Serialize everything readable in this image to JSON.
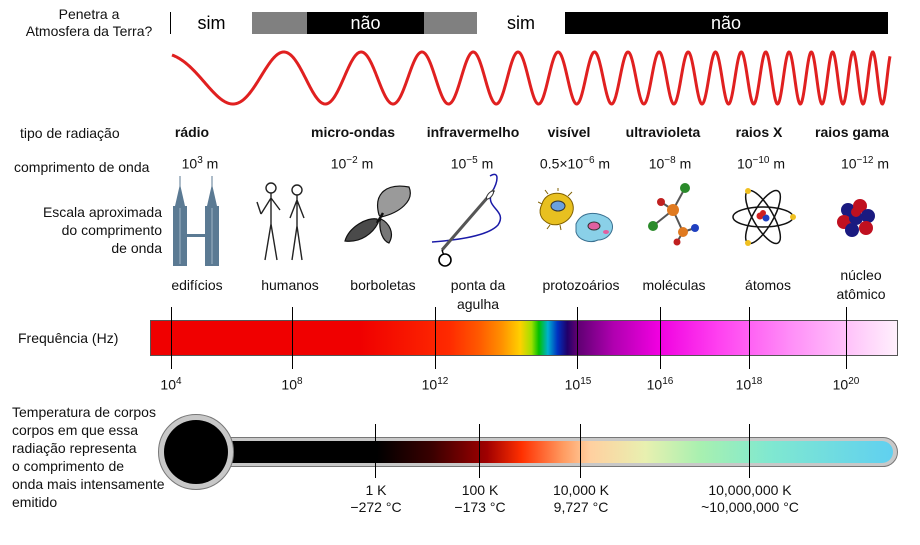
{
  "penetration": {
    "question": [
      "Penetra a",
      "Atmosfera da Terra?"
    ],
    "segments": [
      {
        "label": "sim",
        "fill": "#ffffff",
        "text_color": "#000000"
      },
      {
        "label": "",
        "fill": "#808080",
        "text_color": "#000000"
      },
      {
        "label": "não",
        "fill": "#000000",
        "text_color": "#ffffff"
      },
      {
        "label": "",
        "fill": "#808080",
        "text_color": "#000000"
      },
      {
        "label": "sim",
        "fill": "#ffffff",
        "text_color": "#000000"
      },
      {
        "label": "não",
        "fill": "#000000",
        "text_color": "#ffffff"
      }
    ]
  },
  "wave_color": "#e02020",
  "radiation_type": {
    "row_label": "tipo de radiação",
    "types": [
      "rádio",
      "micro-ondas",
      "infravermelho",
      "visível",
      "ultravioleta",
      "raios X",
      "raios gama"
    ]
  },
  "wavelength": {
    "row_label": "comprimento de onda",
    "values": [
      {
        "base": "10",
        "exp": "3",
        "unit": " m"
      },
      {
        "base": "10",
        "exp": "−2",
        "unit": " m"
      },
      {
        "base": "10",
        "exp": "−5",
        "unit": " m"
      },
      {
        "base": "0.5×10",
        "exp": "−6",
        "unit": " m"
      },
      {
        "base": "10",
        "exp": "−8",
        "unit": " m"
      },
      {
        "base": "10",
        "exp": "−10",
        "unit": " m"
      },
      {
        "base": "10",
        "exp": "−12",
        "unit": " m"
      }
    ]
  },
  "scale": {
    "row_label": [
      "Escala aproximada",
      "do comprimento",
      "de onda"
    ],
    "objects": [
      {
        "label": "edifícios",
        "icon": "twin-towers-icon"
      },
      {
        "label": "humanos",
        "icon": "humans-icon"
      },
      {
        "label": "borboletas",
        "icon": "butterfly-icon"
      },
      {
        "label": "ponta da\nagulha",
        "icon": "needle-icon"
      },
      {
        "label": "protozoários",
        "icon": "protozoa-icon"
      },
      {
        "label": "moléculas",
        "icon": "molecule-icon"
      },
      {
        "label": "átomos",
        "icon": "atom-icon"
      },
      {
        "label": "núcleo\natômico",
        "icon": "nucleus-icon"
      }
    ]
  },
  "frequency": {
    "row_label": "Frequência (Hz)",
    "ticks": [
      {
        "base": "10",
        "exp": "4"
      },
      {
        "base": "10",
        "exp": "8"
      },
      {
        "base": "10",
        "exp": "12"
      },
      {
        "base": "10",
        "exp": "15"
      },
      {
        "base": "10",
        "exp": "16"
      },
      {
        "base": "10",
        "exp": "18"
      },
      {
        "base": "10",
        "exp": "20"
      }
    ]
  },
  "temperature": {
    "row_label": [
      "Temperatura de corpos",
      "corpos em que essa",
      "radiação representa",
      "o comprimento de",
      "onda mais intensamente",
      "emitido"
    ],
    "ticks": [
      {
        "kelvin": "1 K",
        "celsius": "−272 °C"
      },
      {
        "kelvin": "100 K",
        "celsius": "−173 °C"
      },
      {
        "kelvin": "10,000 K",
        "celsius": "9,727 °C"
      },
      {
        "kelvin": "10,000,000 K",
        "celsius": "~10,000,000 °C"
      }
    ]
  }
}
